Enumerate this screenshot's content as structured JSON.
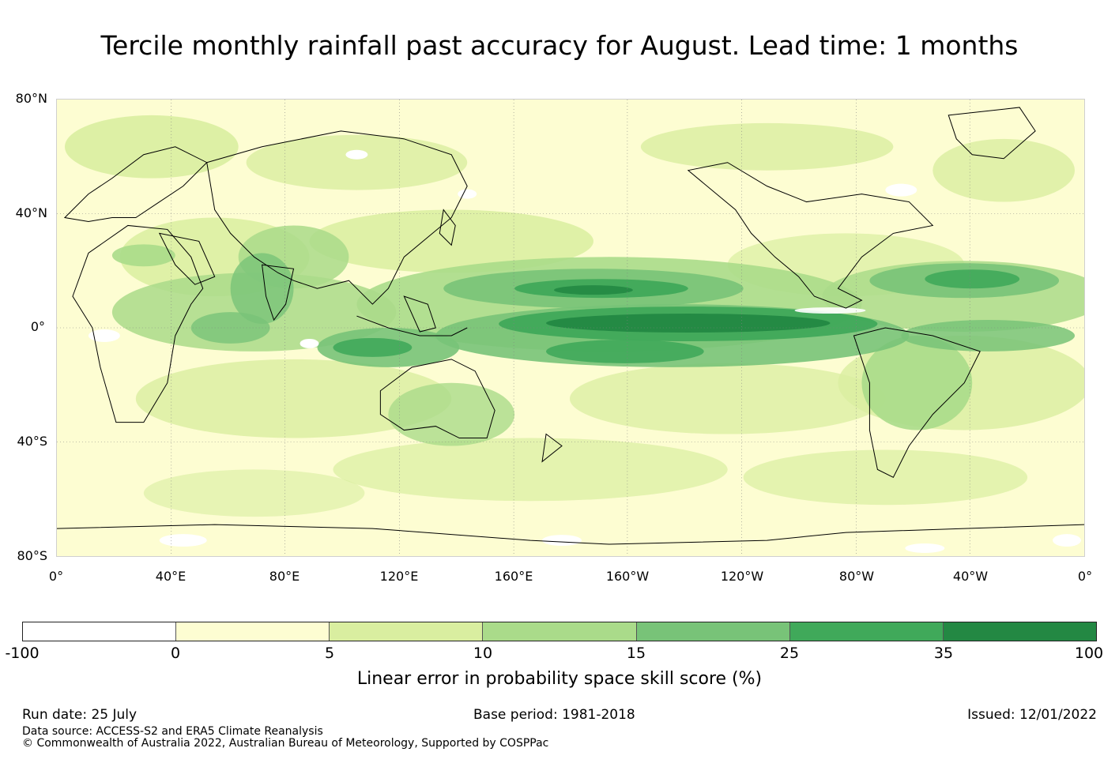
{
  "title": "Tercile monthly rainfall past accuracy for August. Lead time: 1 months",
  "map": {
    "lat_labels": [
      "80°N",
      "40°N",
      "0°",
      "40°S",
      "80°S"
    ],
    "lon_labels": [
      "0°",
      "40°E",
      "80°E",
      "120°E",
      "160°E",
      "160°W",
      "120°W",
      "80°W",
      "40°W",
      "0°"
    ],
    "background_color": "#fdfdd2",
    "coastline_color": "#000000",
    "gridlines": true
  },
  "colorbar": {
    "ticks": [
      "-100",
      "0",
      "5",
      "10",
      "15",
      "25",
      "35",
      "100"
    ],
    "colors": [
      "#ffffff",
      "#fdfdd2",
      "#d9eea0",
      "#aadb8a",
      "#78c378",
      "#40a95a",
      "#238843"
    ],
    "label": "Linear error in probability space skill score (%)"
  },
  "footer": {
    "run_date": "Run date: 25 July",
    "base_period": "Base period: 1981-2018",
    "issued": "Issued: 12/01/2022",
    "data_source": "Data source: ACCESS-S2 and ERA5 Climate Reanalysis",
    "copyright": "© Commonwealth of Australia 2022, Australian Bureau of Meteorology, Supported by COSPPac"
  }
}
